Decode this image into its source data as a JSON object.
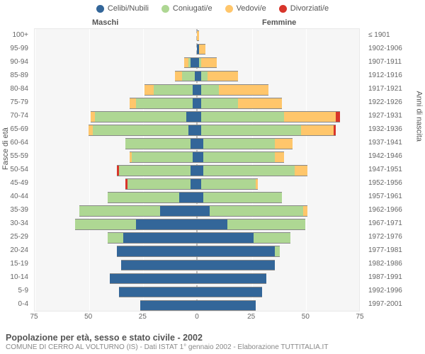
{
  "legend": [
    {
      "label": "Celibi/Nubili",
      "color": "#336699"
    },
    {
      "label": "Coniugati/e",
      "color": "#aed793"
    },
    {
      "label": "Vedovi/e",
      "color": "#ffc66b"
    },
    {
      "label": "Divorziati/e",
      "color": "#d8352b"
    }
  ],
  "headers": {
    "male": "Maschi",
    "female": "Femmine"
  },
  "axis": {
    "left_title": "Fasce di età",
    "right_title": "Anni di nascita",
    "xmax": 75,
    "xticks": [
      75,
      50,
      25,
      0,
      25,
      50,
      75
    ]
  },
  "age_labels": [
    "100+",
    "95-99",
    "90-94",
    "85-89",
    "80-84",
    "75-79",
    "70-74",
    "65-69",
    "60-64",
    "55-59",
    "50-54",
    "45-49",
    "40-44",
    "35-39",
    "30-34",
    "25-29",
    "20-24",
    "15-19",
    "10-14",
    "5-9",
    "0-4"
  ],
  "year_labels": [
    "≤ 1901",
    "1902-1906",
    "1907-1911",
    "1912-1916",
    "1917-1921",
    "1922-1926",
    "1927-1931",
    "1932-1936",
    "1937-1941",
    "1942-1946",
    "1947-1951",
    "1952-1956",
    "1957-1961",
    "1962-1966",
    "1967-1971",
    "1972-1976",
    "1977-1981",
    "1982-1986",
    "1987-1991",
    "1992-1996",
    "1997-2001"
  ],
  "rows": [
    {
      "m": {
        "c": 0,
        "k": 0,
        "w": 0,
        "d": 0
      },
      "f": {
        "c": 0,
        "k": 0,
        "w": 1,
        "d": 0
      }
    },
    {
      "m": {
        "c": 0,
        "k": 0,
        "w": 0,
        "d": 0
      },
      "f": {
        "c": 1,
        "k": 0,
        "w": 3,
        "d": 0
      }
    },
    {
      "m": {
        "c": 3,
        "k": 1,
        "w": 2,
        "d": 0
      },
      "f": {
        "c": 1,
        "k": 1,
        "w": 7,
        "d": 0
      }
    },
    {
      "m": {
        "c": 1,
        "k": 6,
        "w": 3,
        "d": 0
      },
      "f": {
        "c": 2,
        "k": 3,
        "w": 14,
        "d": 0
      }
    },
    {
      "m": {
        "c": 2,
        "k": 18,
        "w": 4,
        "d": 0
      },
      "f": {
        "c": 2,
        "k": 8,
        "w": 23,
        "d": 0
      }
    },
    {
      "m": {
        "c": 2,
        "k": 26,
        "w": 3,
        "d": 0
      },
      "f": {
        "c": 2,
        "k": 17,
        "w": 20,
        "d": 0
      }
    },
    {
      "m": {
        "c": 5,
        "k": 42,
        "w": 2,
        "d": 0
      },
      "f": {
        "c": 2,
        "k": 38,
        "w": 24,
        "d": 2
      }
    },
    {
      "m": {
        "c": 4,
        "k": 44,
        "w": 2,
        "d": 0
      },
      "f": {
        "c": 2,
        "k": 46,
        "w": 15,
        "d": 1
      }
    },
    {
      "m": {
        "c": 3,
        "k": 30,
        "w": 0,
        "d": 0
      },
      "f": {
        "c": 3,
        "k": 33,
        "w": 8,
        "d": 0
      }
    },
    {
      "m": {
        "c": 2,
        "k": 28,
        "w": 1,
        "d": 0
      },
      "f": {
        "c": 3,
        "k": 33,
        "w": 4,
        "d": 0
      }
    },
    {
      "m": {
        "c": 3,
        "k": 33,
        "w": 0,
        "d": 1
      },
      "f": {
        "c": 3,
        "k": 42,
        "w": 6,
        "d": 0
      }
    },
    {
      "m": {
        "c": 3,
        "k": 29,
        "w": 0,
        "d": 1
      },
      "f": {
        "c": 2,
        "k": 25,
        "w": 1,
        "d": 0
      }
    },
    {
      "m": {
        "c": 8,
        "k": 33,
        "w": 0,
        "d": 0
      },
      "f": {
        "c": 3,
        "k": 36,
        "w": 0,
        "d": 0
      }
    },
    {
      "m": {
        "c": 17,
        "k": 37,
        "w": 0,
        "d": 0
      },
      "f": {
        "c": 6,
        "k": 43,
        "w": 2,
        "d": 0
      }
    },
    {
      "m": {
        "c": 28,
        "k": 28,
        "w": 0,
        "d": 0
      },
      "f": {
        "c": 14,
        "k": 36,
        "w": 0,
        "d": 0
      }
    },
    {
      "m": {
        "c": 34,
        "k": 7,
        "w": 0,
        "d": 0
      },
      "f": {
        "c": 26,
        "k": 17,
        "w": 0,
        "d": 0
      }
    },
    {
      "m": {
        "c": 37,
        "k": 0,
        "w": 0,
        "d": 0
      },
      "f": {
        "c": 36,
        "k": 2,
        "w": 0,
        "d": 0
      }
    },
    {
      "m": {
        "c": 35,
        "k": 0,
        "w": 0,
        "d": 0
      },
      "f": {
        "c": 36,
        "k": 0,
        "w": 0,
        "d": 0
      }
    },
    {
      "m": {
        "c": 40,
        "k": 0,
        "w": 0,
        "d": 0
      },
      "f": {
        "c": 32,
        "k": 0,
        "w": 0,
        "d": 0
      }
    },
    {
      "m": {
        "c": 36,
        "k": 0,
        "w": 0,
        "d": 0
      },
      "f": {
        "c": 30,
        "k": 0,
        "w": 0,
        "d": 0
      }
    },
    {
      "m": {
        "c": 26,
        "k": 0,
        "w": 0,
        "d": 0
      },
      "f": {
        "c": 27,
        "k": 0,
        "w": 0,
        "d": 0
      }
    }
  ],
  "colors": {
    "celibi": "#336699",
    "coniugati": "#aed793",
    "vedovi": "#ffc66b",
    "divorziati": "#d8352b",
    "bar_border": "#888888"
  },
  "footer": {
    "title": "Popolazione per età, sesso e stato civile - 2002",
    "sub": "COMUNE DI CERRO AL VOLTURNO (IS) - Dati ISTAT 1° gennaio 2002 - Elaborazione TUTTITALIA.IT"
  }
}
